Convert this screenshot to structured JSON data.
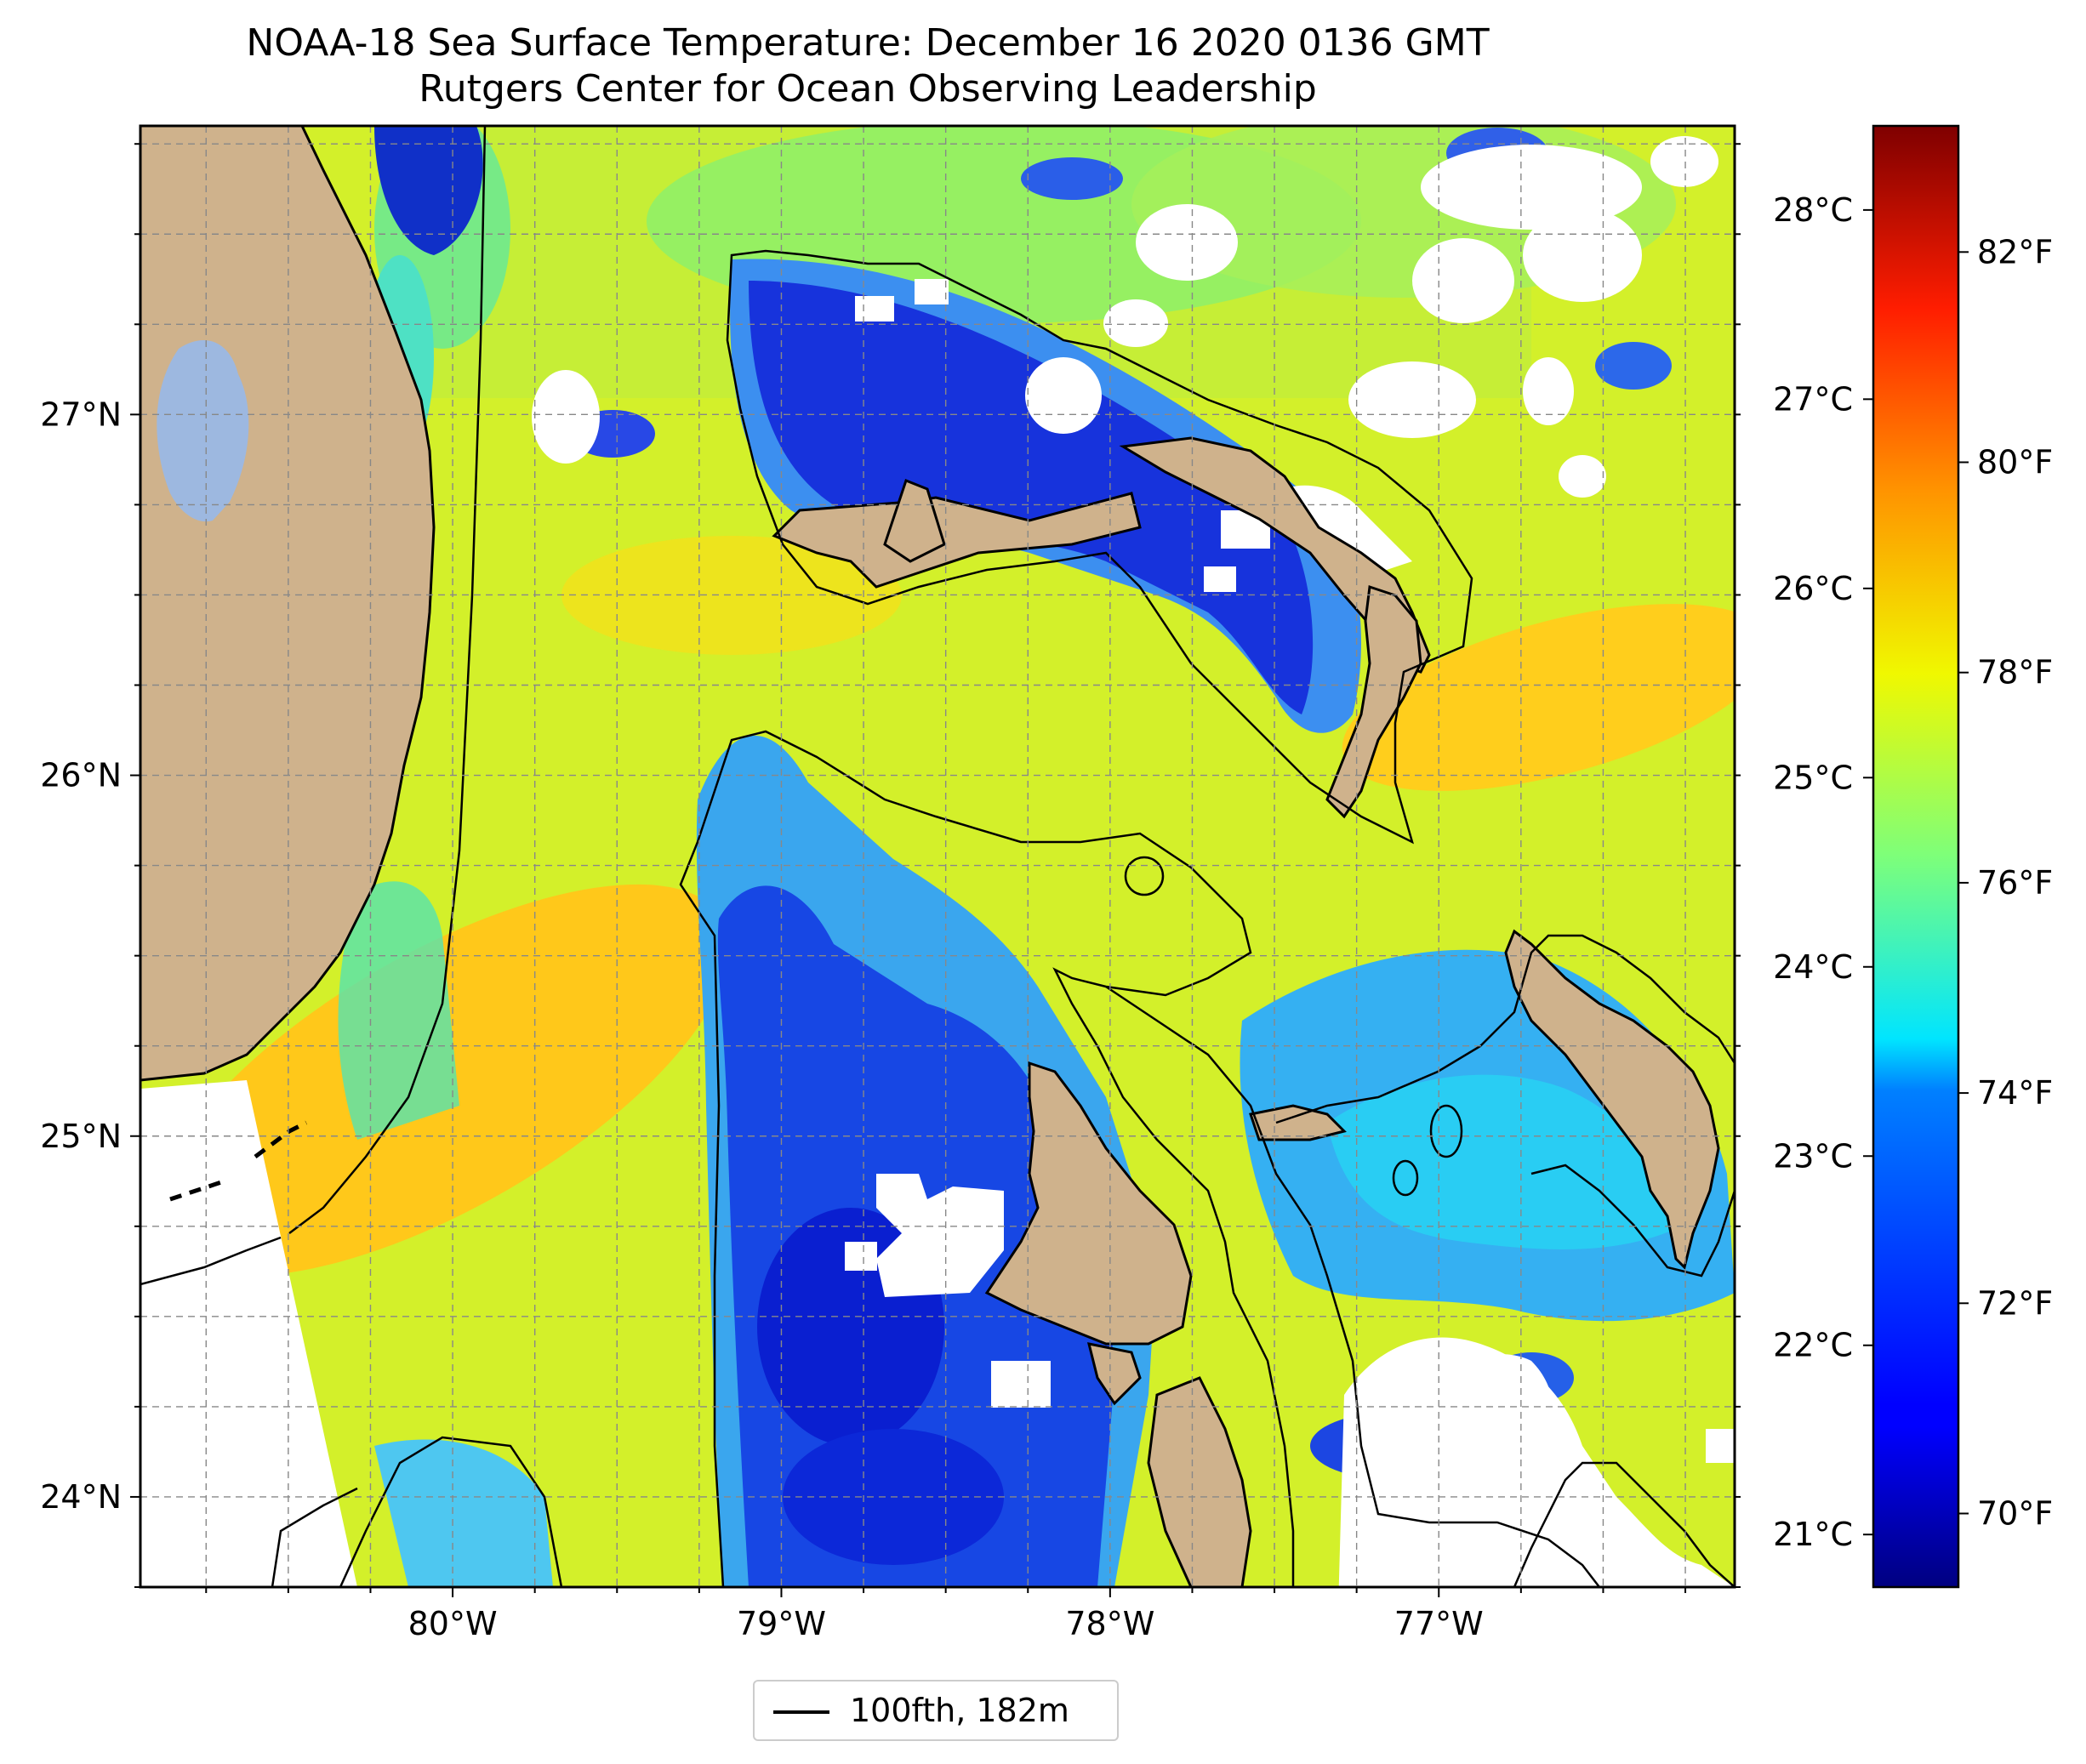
{
  "title": "NOAA-18 Sea Surface Temperature: December 16 2020 0136 GMT",
  "subtitle": "Rutgers Center for Ocean Observing Leadership",
  "chart_data": {
    "type": "heatmap",
    "map_extent": {
      "lon": [
        -80.95,
        -76.1
      ],
      "lat": [
        23.75,
        27.8
      ]
    },
    "x_ticks": [
      {
        "value": -80,
        "label": "80°W"
      },
      {
        "value": -79,
        "label": "79°W"
      },
      {
        "value": -78,
        "label": "78°W"
      },
      {
        "value": -77,
        "label": "77°W"
      }
    ],
    "y_ticks": [
      {
        "value": 24,
        "label": "24°N"
      },
      {
        "value": 25,
        "label": "25°N"
      },
      {
        "value": 26,
        "label": "26°N"
      },
      {
        "value": 27,
        "label": "27°N"
      }
    ],
    "grid": true,
    "colorbar": {
      "colormap": "jet",
      "range_f": [
        69.3,
        83.2
      ],
      "celsius_ticks": [
        {
          "value": 21,
          "label": "21°C"
        },
        {
          "value": 22,
          "label": "22°C"
        },
        {
          "value": 23,
          "label": "23°C"
        },
        {
          "value": 24,
          "label": "24°C"
        },
        {
          "value": 25,
          "label": "25°C"
        },
        {
          "value": 26,
          "label": "26°C"
        },
        {
          "value": 27,
          "label": "27°C"
        },
        {
          "value": 28,
          "label": "28°C"
        }
      ],
      "fahrenheit_ticks": [
        {
          "value": 70,
          "label": "70°F"
        },
        {
          "value": 72,
          "label": "72°F"
        },
        {
          "value": 74,
          "label": "74°F"
        },
        {
          "value": 76,
          "label": "76°F"
        },
        {
          "value": 78,
          "label": "78°F"
        },
        {
          "value": 80,
          "label": "80°F"
        },
        {
          "value": 82,
          "label": "82°F"
        }
      ]
    },
    "legend": {
      "position": "bottom-center",
      "entries": [
        {
          "label": "100fth, 182m"
        }
      ]
    },
    "colors": {
      "land": "#cfb28c",
      "lake": "#9db8e0",
      "warm_water": "#f2ce1c",
      "mid_water": "#b9ef35",
      "cool_water": "#2f8ef4",
      "cold_water": "#0a1fd6",
      "no_data": "#ffffff",
      "contour": "#000000"
    }
  },
  "legend_label": "100fth, 182m"
}
